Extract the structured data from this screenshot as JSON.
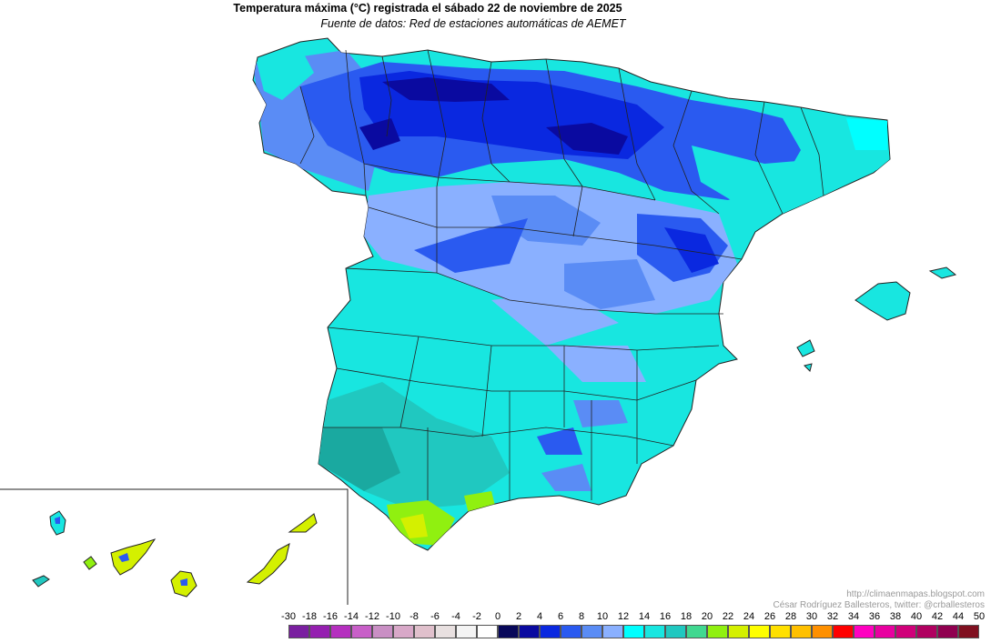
{
  "map": {
    "title": "Temperatura máxima (°C) registrada el sábado 22 de noviembre de 2025",
    "subtitle": "Fuente de datos: Red de estaciones automáticas de AEMET",
    "credit_url": "http://climaenmapas.blogspot.com",
    "credit_author": "César Rodríguez Ballesteros, twitter: @crballesteros"
  },
  "legend": {
    "labels": [
      "-30",
      "-18",
      "-16",
      "-14",
      "-12",
      "-10",
      "-8",
      "-6",
      "-4",
      "-2",
      "0",
      "2",
      "4",
      "6",
      "8",
      "10",
      "12",
      "14",
      "16",
      "18",
      "20",
      "22",
      "24",
      "26",
      "28",
      "30",
      "32",
      "34",
      "36",
      "38",
      "40",
      "42",
      "44",
      "50"
    ],
    "colors": [
      "#7a1fa0",
      "#951fb0",
      "#b52fbf",
      "#c85fc8",
      "#c98fc4",
      "#d8a8c8",
      "#e0c0cc",
      "#e8e0e0",
      "#f4f4f4",
      "#ffffff",
      "#08085a",
      "#0a0aa0",
      "#0a28e0",
      "#2a5af0",
      "#5a8cf5",
      "#8ab0ff",
      "#00ffff",
      "#18e6e0",
      "#20c8c0",
      "#40d890",
      "#90f010",
      "#d4f000",
      "#ffff00",
      "#ffe000",
      "#ffc000",
      "#ff9000",
      "#ff0000",
      "#ff00c0",
      "#e800a0",
      "#d0007a",
      "#b00060",
      "#900050",
      "#801020"
    ]
  }
}
